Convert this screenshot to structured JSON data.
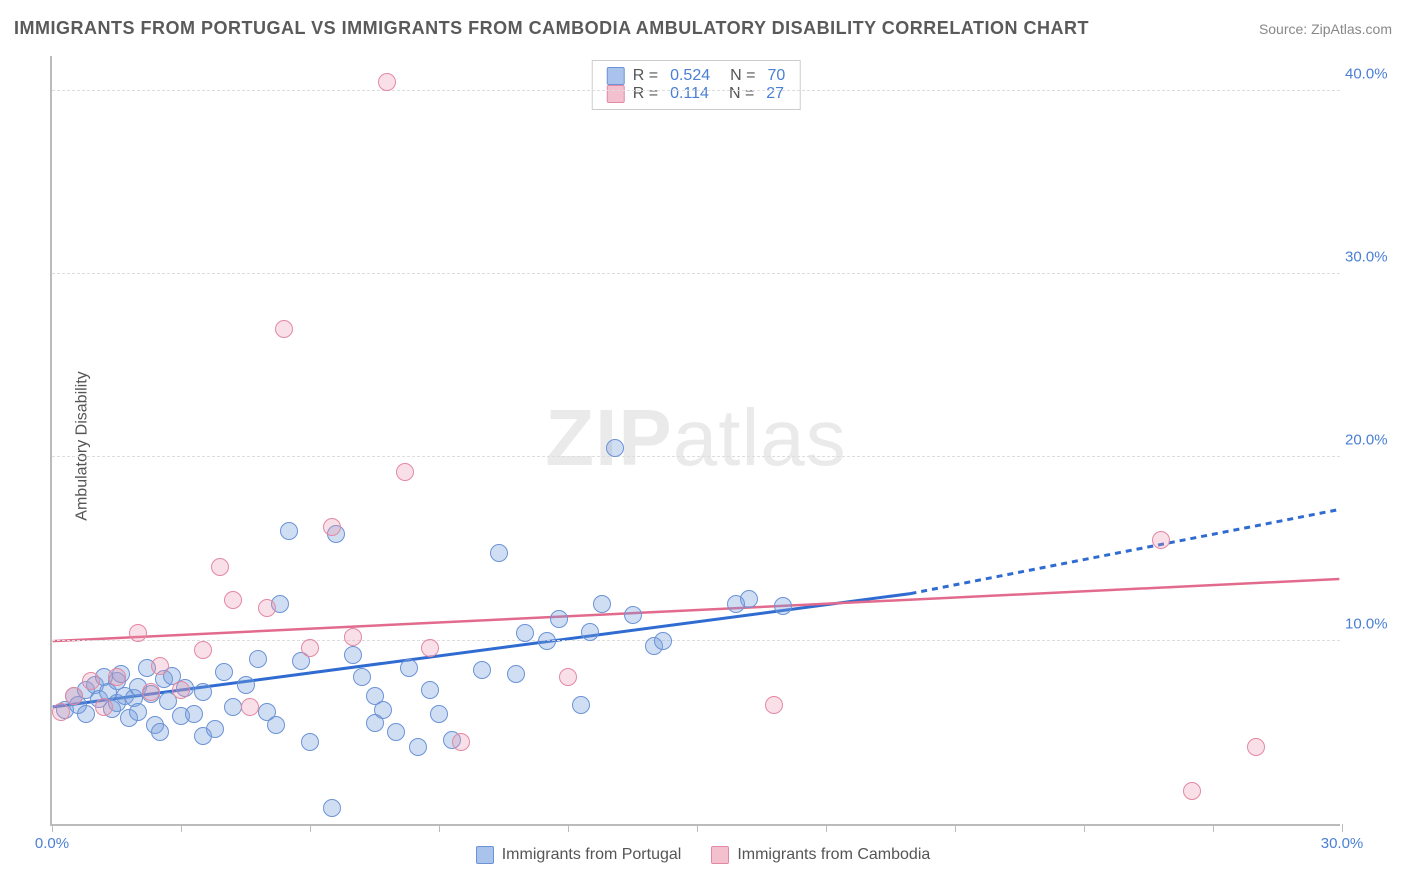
{
  "title": "IMMIGRANTS FROM PORTUGAL VS IMMIGRANTS FROM CAMBODIA AMBULATORY DISABILITY CORRELATION CHART",
  "source": "Source: ZipAtlas.com",
  "ylabel": "Ambulatory Disability",
  "watermark_bold": "ZIP",
  "watermark_rest": "atlas",
  "chart": {
    "type": "scatter",
    "xlim": [
      0,
      30
    ],
    "ylim": [
      0,
      42
    ],
    "xticks": [
      0,
      3,
      6,
      9,
      12,
      15,
      18,
      21,
      24,
      27,
      30
    ],
    "xtick_labels": {
      "0": "0.0%",
      "30": "30.0%"
    },
    "yticks": [
      10,
      20,
      30,
      40
    ],
    "ytick_labels": {
      "10": "10.0%",
      "20": "20.0%",
      "30": "30.0%",
      "40": "40.0%"
    },
    "background_color": "#ffffff",
    "grid_color": "#dddddd",
    "axis_color": "#bbbbbb",
    "tick_label_color": "#4a7fd6",
    "marker_radius": 9,
    "marker_stroke_width": 1.5,
    "series": [
      {
        "key": "portugal",
        "label": "Immigrants from Portugal",
        "fill": "rgba(120,160,220,0.35)",
        "stroke": "#6b93d6",
        "swatch_fill": "#a9c3ec",
        "swatch_border": "#6b93d6",
        "R": "0.524",
        "N": "70",
        "trend": {
          "x1": 0,
          "y1": 6.4,
          "x2_solid": 20,
          "y2_solid": 12.6,
          "x2_dash": 30,
          "y2_dash": 17.2,
          "color": "#2f6bd0",
          "width": 3,
          "dash": "6 5"
        },
        "points": [
          [
            0.3,
            6.2
          ],
          [
            0.5,
            7.0
          ],
          [
            0.6,
            6.5
          ],
          [
            0.8,
            7.3
          ],
          [
            0.8,
            6.0
          ],
          [
            1.0,
            7.6
          ],
          [
            1.1,
            6.8
          ],
          [
            1.2,
            8.0
          ],
          [
            1.3,
            7.2
          ],
          [
            1.4,
            6.3
          ],
          [
            1.5,
            7.8
          ],
          [
            1.5,
            6.6
          ],
          [
            1.6,
            8.2
          ],
          [
            1.7,
            7.0
          ],
          [
            1.8,
            5.8
          ],
          [
            1.9,
            6.9
          ],
          [
            2.0,
            7.5
          ],
          [
            2.0,
            6.1
          ],
          [
            2.2,
            8.5
          ],
          [
            2.3,
            7.1
          ],
          [
            2.4,
            5.4
          ],
          [
            2.5,
            5.0
          ],
          [
            2.6,
            7.9
          ],
          [
            2.7,
            6.7
          ],
          [
            2.8,
            8.1
          ],
          [
            3.0,
            5.9
          ],
          [
            3.1,
            7.4
          ],
          [
            3.3,
            6.0
          ],
          [
            3.5,
            4.8
          ],
          [
            3.5,
            7.2
          ],
          [
            3.8,
            5.2
          ],
          [
            4.0,
            8.3
          ],
          [
            4.2,
            6.4
          ],
          [
            4.5,
            7.6
          ],
          [
            4.8,
            9.0
          ],
          [
            5.0,
            6.1
          ],
          [
            5.2,
            5.4
          ],
          [
            5.3,
            12.0
          ],
          [
            5.5,
            16.0
          ],
          [
            5.8,
            8.9
          ],
          [
            6.0,
            4.5
          ],
          [
            6.5,
            0.9
          ],
          [
            6.6,
            15.8
          ],
          [
            7.0,
            9.2
          ],
          [
            7.2,
            8.0
          ],
          [
            7.5,
            7.0
          ],
          [
            7.5,
            5.5
          ],
          [
            7.7,
            6.2
          ],
          [
            8.0,
            5.0
          ],
          [
            8.3,
            8.5
          ],
          [
            8.5,
            4.2
          ],
          [
            8.8,
            7.3
          ],
          [
            9.0,
            6.0
          ],
          [
            9.3,
            4.6
          ],
          [
            10.0,
            8.4
          ],
          [
            10.4,
            14.8
          ],
          [
            10.8,
            8.2
          ],
          [
            11.0,
            10.4
          ],
          [
            11.5,
            10.0
          ],
          [
            11.8,
            11.2
          ],
          [
            12.3,
            6.5
          ],
          [
            12.5,
            10.5
          ],
          [
            12.8,
            12.0
          ],
          [
            13.1,
            20.5
          ],
          [
            13.5,
            11.4
          ],
          [
            14.0,
            9.7
          ],
          [
            14.2,
            10.0
          ],
          [
            16.2,
            12.3
          ],
          [
            15.9,
            12.0
          ],
          [
            17.0,
            11.9
          ]
        ]
      },
      {
        "key": "cambodia",
        "label": "Immigrants from Cambodia",
        "fill": "rgba(235,150,175,0.30)",
        "stroke": "#e389a3",
        "swatch_fill": "#f3c0cf",
        "swatch_border": "#e389a3",
        "R": "0.114",
        "N": "27",
        "trend": {
          "x1": 0,
          "y1": 10.0,
          "x2_solid": 30,
          "y2_solid": 13.4,
          "x2_dash": 30,
          "y2_dash": 13.4,
          "color": "#e26a8d",
          "width": 2.5,
          "dash": ""
        },
        "points": [
          [
            0.2,
            6.1
          ],
          [
            0.5,
            7.0
          ],
          [
            0.9,
            7.8
          ],
          [
            1.2,
            6.4
          ],
          [
            1.5,
            8.0
          ],
          [
            2.0,
            10.4
          ],
          [
            2.3,
            7.2
          ],
          [
            2.5,
            8.6
          ],
          [
            3.0,
            7.3
          ],
          [
            3.5,
            9.5
          ],
          [
            3.9,
            14.0
          ],
          [
            4.2,
            12.2
          ],
          [
            4.6,
            6.4
          ],
          [
            5.0,
            11.8
          ],
          [
            5.4,
            27.0
          ],
          [
            6.0,
            9.6
          ],
          [
            6.5,
            16.2
          ],
          [
            7.0,
            10.2
          ],
          [
            7.8,
            40.5
          ],
          [
            8.2,
            19.2
          ],
          [
            8.8,
            9.6
          ],
          [
            9.5,
            4.5
          ],
          [
            12.0,
            8.0
          ],
          [
            16.8,
            6.5
          ],
          [
            25.8,
            15.5
          ],
          [
            26.5,
            1.8
          ],
          [
            28.0,
            4.2
          ]
        ]
      }
    ]
  },
  "legend_r_label": "R =",
  "legend_n_label": "N ="
}
